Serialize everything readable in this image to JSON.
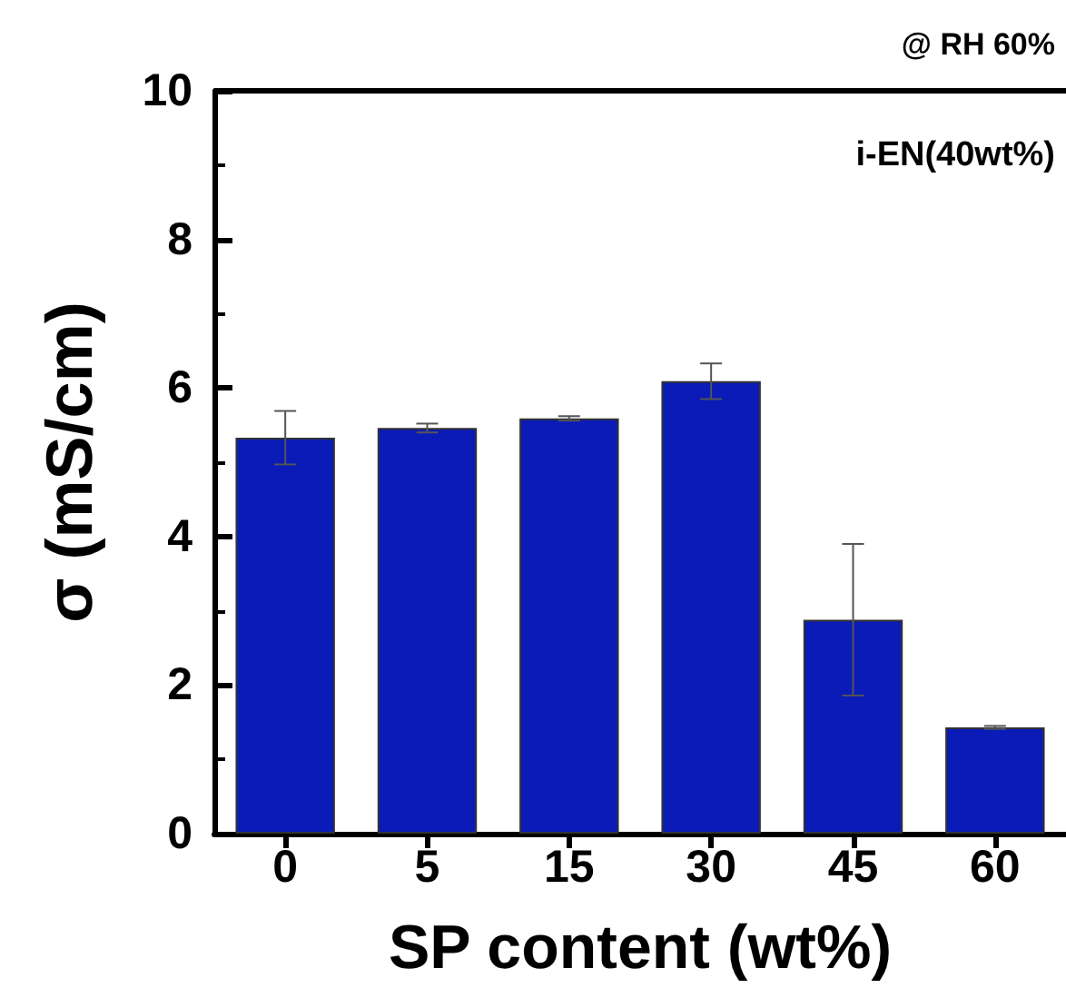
{
  "chart_data": {
    "type": "bar",
    "xlabel": "SP content (wt%)",
    "ylabel": "σ (mS/cm)",
    "categories": [
      "0",
      "5",
      "15",
      "30",
      "45",
      "60"
    ],
    "values": [
      5.33,
      5.46,
      5.59,
      6.09,
      2.88,
      1.43
    ],
    "errors": [
      0.36,
      0.06,
      0.03,
      0.24,
      1.02,
      0.02
    ],
    "color": "#0a1bb8",
    "ylim": [
      0,
      10
    ],
    "yticks": [
      0,
      2,
      4,
      6,
      8,
      10
    ],
    "grid": false,
    "annotations": [
      "@ RH 60%",
      "i-EN(40wt%)"
    ]
  }
}
